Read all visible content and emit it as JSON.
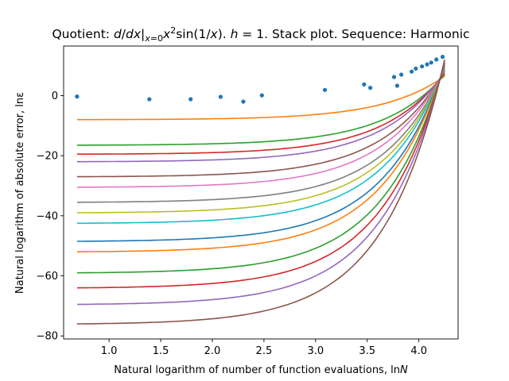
{
  "chart_data": {
    "type": "line",
    "title": "Quotient: d/dx|x=0 x²sin(1/x). h = 1. Stack plot. Sequence: Harmonic",
    "title_parts": {
      "prefix": "Quotient: ",
      "d": "d",
      "slash": "/",
      "dx": "dx",
      "bar": "|",
      "sub": "x",
      "subeq": "=0",
      "x": "x",
      "exp": "2",
      "func": "sin(1/",
      "x2": "x",
      "close": "). ",
      "h": "h",
      "rest": " = 1. Stack plot. Sequence: Harmonic"
    },
    "xlabel": "Natural logarithm of number of function evaluations, ln",
    "xlabel_var": "N",
    "ylabel": "Natural logarithm of absolute error, lnε",
    "xlim": [
      0.56,
      4.38
    ],
    "ylim": [
      -81,
      16.5
    ],
    "xticks": [
      1.0,
      1.5,
      2.0,
      2.5,
      3.0,
      3.5,
      4.0
    ],
    "xtick_labels": [
      "1.0",
      "1.5",
      "2.0",
      "2.5",
      "3.0",
      "3.5",
      "4.0"
    ],
    "yticks": [
      -80,
      -60,
      -40,
      -20,
      0
    ],
    "ytick_labels": [
      "−80",
      "−60",
      "−40",
      "−20",
      "0"
    ],
    "grid": false,
    "series_colors": [
      "#ff7f0e",
      "#2ca02c",
      "#d62728",
      "#9467bd",
      "#8c564b",
      "#e377c2",
      "#7f7f7f",
      "#bcbd22",
      "#17becf",
      "#1f77b4",
      "#ff7f0e",
      "#2ca02c",
      "#d62728",
      "#9467bd",
      "#8c564b"
    ],
    "series": [
      {
        "start": [
          0.69,
          -8
        ],
        "end": [
          4.25,
          6.5
        ]
      },
      {
        "start": [
          0.69,
          -16.5
        ],
        "end": [
          4.25,
          7
        ]
      },
      {
        "start": [
          0.69,
          -19.5
        ],
        "end": [
          4.25,
          7.5
        ]
      },
      {
        "start": [
          0.69,
          -22
        ],
        "end": [
          4.25,
          8
        ]
      },
      {
        "start": [
          0.69,
          -27
        ],
        "end": [
          4.25,
          8.3
        ]
      },
      {
        "start": [
          0.69,
          -30.5
        ],
        "end": [
          4.25,
          8.6
        ]
      },
      {
        "start": [
          0.69,
          -35.5
        ],
        "end": [
          4.25,
          9
        ]
      },
      {
        "start": [
          0.69,
          -39
        ],
        "end": [
          4.25,
          9.3
        ]
      },
      {
        "start": [
          0.69,
          -42.5
        ],
        "end": [
          4.25,
          9.6
        ]
      },
      {
        "start": [
          0.69,
          -48.5
        ],
        "end": [
          4.25,
          10
        ]
      },
      {
        "start": [
          0.69,
          -52
        ],
        "end": [
          4.25,
          10.3
        ]
      },
      {
        "start": [
          0.69,
          -59
        ],
        "end": [
          4.25,
          10.6
        ]
      },
      {
        "start": [
          0.69,
          -64
        ],
        "end": [
          4.25,
          11
        ]
      },
      {
        "start": [
          0.69,
          -69.5
        ],
        "end": [
          4.25,
          11.4
        ]
      },
      {
        "start": [
          0.69,
          -76
        ],
        "end": [
          4.25,
          12
        ]
      }
    ],
    "scatter_color": "#1f77b4",
    "scatter": [
      [
        0.69,
        -0.3
      ],
      [
        1.39,
        -1.2
      ],
      [
        1.79,
        -1.2
      ],
      [
        2.08,
        -0.4
      ],
      [
        2.3,
        -2.0
      ],
      [
        2.48,
        0.1
      ],
      [
        3.09,
        1.9
      ],
      [
        3.47,
        3.7
      ],
      [
        3.53,
        2.6
      ],
      [
        3.76,
        6.2
      ],
      [
        3.79,
        3.3
      ],
      [
        3.83,
        7.0
      ],
      [
        3.93,
        8.0
      ],
      [
        3.97,
        9.0
      ],
      [
        4.03,
        9.7
      ],
      [
        4.08,
        10.4
      ],
      [
        4.12,
        11.0
      ],
      [
        4.17,
        12.0
      ],
      [
        4.23,
        12.9
      ]
    ]
  }
}
